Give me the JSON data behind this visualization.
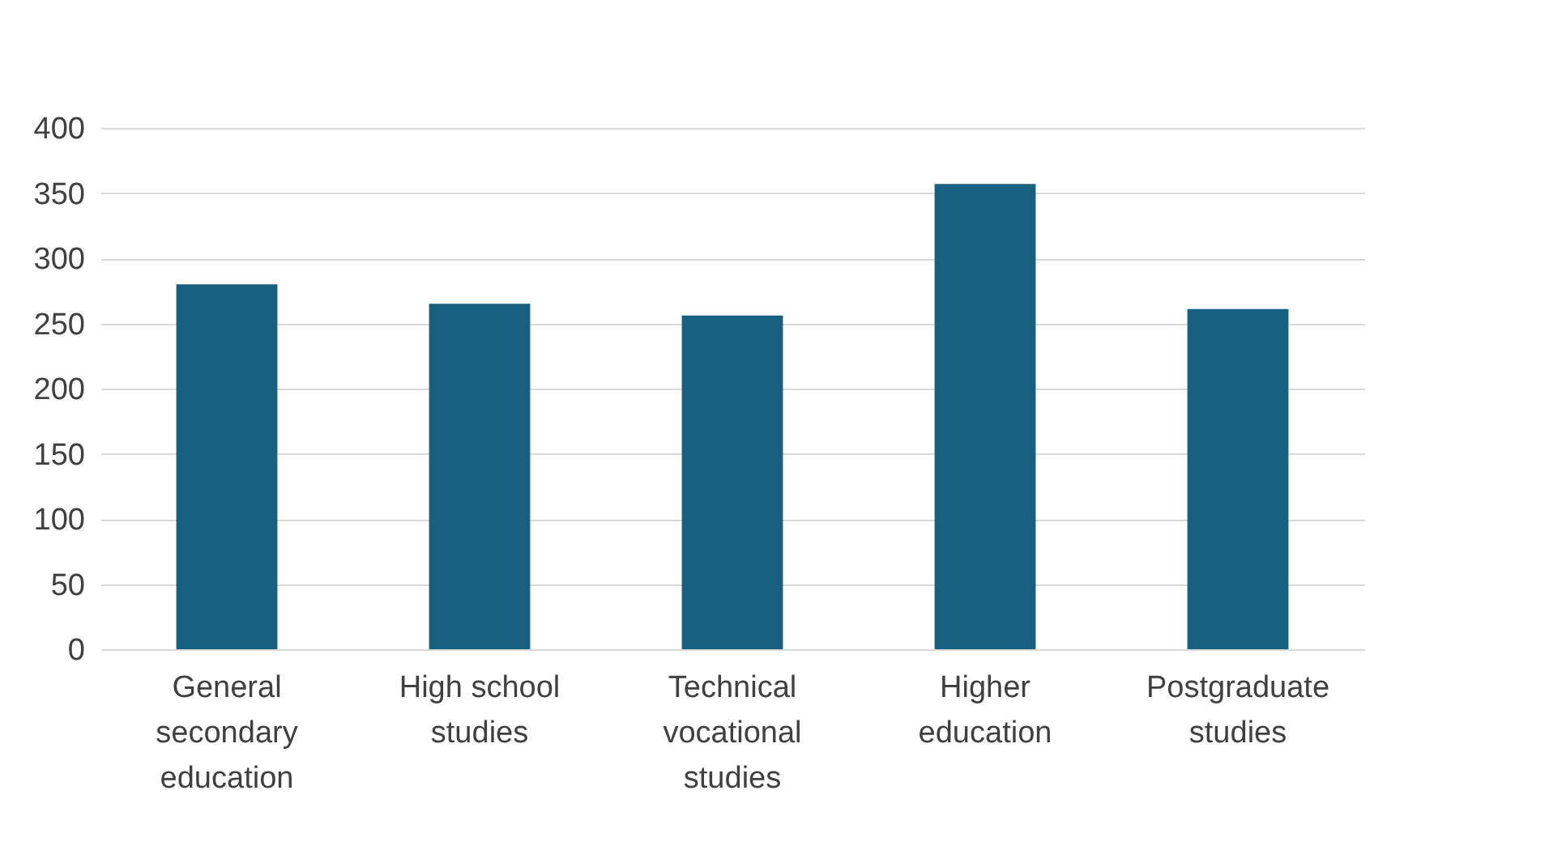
{
  "chart_data": {
    "type": "bar",
    "categories": [
      "General secondary education",
      "High school studies",
      "Technical vocational studies",
      "Higher education",
      "Postgraduate studies"
    ],
    "values": [
      280,
      265,
      256,
      357,
      261
    ],
    "color": "#17607f",
    "ylim": [
      0,
      400
    ],
    "yticks": [
      0,
      50,
      100,
      150,
      200,
      250,
      300,
      350,
      400
    ],
    "grid": "y"
  }
}
